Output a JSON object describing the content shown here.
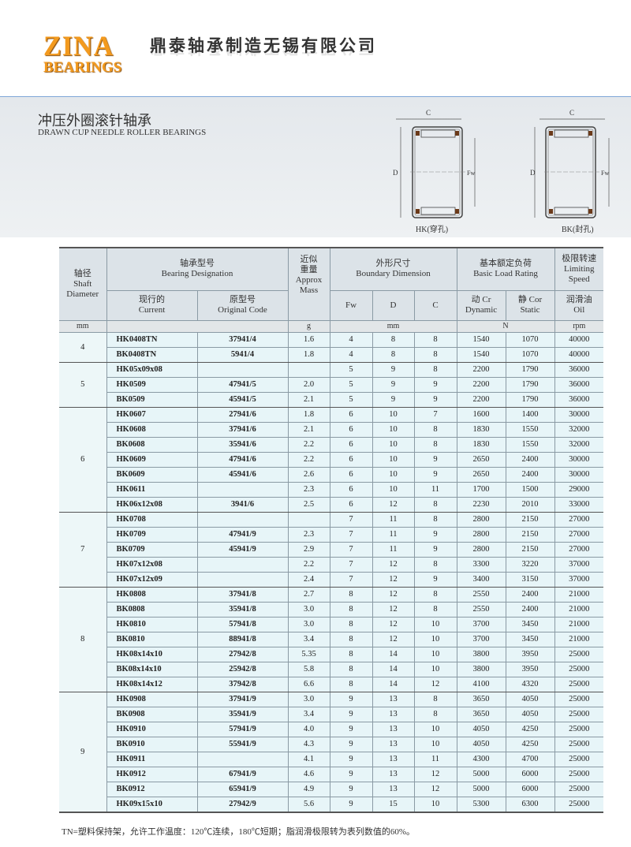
{
  "header": {
    "logo_line1": "ZINA",
    "logo_line2": "BEARINGS",
    "company": "鼎泰轴承制造无锡有限公司"
  },
  "section": {
    "title_cn": "冲压外圈滚针轴承",
    "title_en": "DRAWN CUP NEEDLE ROLLER BEARINGS"
  },
  "diagrams": [
    {
      "caption": "HK(穿孔)",
      "label_c": "C",
      "tolerance": "0/-0.25",
      "label_d": "D",
      "label_fw": "Fw"
    },
    {
      "caption": "BK(封孔)",
      "label_c": "C",
      "tolerance": "0/-0.25",
      "label_d": "D",
      "label_fw": "Fw"
    }
  ],
  "table": {
    "headers": {
      "shaft": [
        "轴径",
        "Shaft",
        "Diameter"
      ],
      "designation": [
        "轴承型号",
        "Bearing Designation"
      ],
      "current": [
        "现行的",
        "Current"
      ],
      "original": [
        "原型号",
        "Original Code"
      ],
      "mass": [
        "近似",
        "重量",
        "Approx",
        "Mass"
      ],
      "boundary": [
        "外形尺寸",
        "Boundary Dimension"
      ],
      "fw": "Fw",
      "d": "D",
      "c": "C",
      "load": [
        "基本额定负荷",
        "Basic Load Rating"
      ],
      "cr": [
        "动 Cr",
        "Dynamic"
      ],
      "cor": [
        "静 Cor",
        "Static"
      ],
      "speed": [
        "极限转速",
        "Limiting",
        "Speed"
      ],
      "oil": [
        "润滑油",
        "Oil"
      ]
    },
    "units": {
      "shaft": "mm",
      "mass": "g",
      "dims": "mm",
      "load": "N",
      "speed": "rpm"
    },
    "groups": [
      {
        "shaft": "4",
        "rows": [
          [
            "HK0408TN",
            "37941/4",
            "1.6",
            "4",
            "8",
            "8",
            "1540",
            "1070",
            "40000"
          ],
          [
            "BK0408TN",
            "5941/4",
            "1.8",
            "4",
            "8",
            "8",
            "1540",
            "1070",
            "40000"
          ]
        ]
      },
      {
        "shaft": "5",
        "rows": [
          [
            "HK05x09x08",
            "",
            "",
            "5",
            "9",
            "8",
            "2200",
            "1790",
            "36000"
          ],
          [
            "HK0509",
            "47941/5",
            "2.0",
            "5",
            "9",
            "9",
            "2200",
            "1790",
            "36000"
          ],
          [
            "BK0509",
            "45941/5",
            "2.1",
            "5",
            "9",
            "9",
            "2200",
            "1790",
            "36000"
          ]
        ]
      },
      {
        "shaft": "6",
        "rows": [
          [
            "HK0607",
            "27941/6",
            "1.8",
            "6",
            "10",
            "7",
            "1600",
            "1400",
            "30000"
          ],
          [
            "HK0608",
            "37941/6",
            "2.1",
            "6",
            "10",
            "8",
            "1830",
            "1550",
            "32000"
          ],
          [
            "BK0608",
            "35941/6",
            "2.2",
            "6",
            "10",
            "8",
            "1830",
            "1550",
            "32000"
          ],
          [
            "HK0609",
            "47941/6",
            "2.2",
            "6",
            "10",
            "9",
            "2650",
            "2400",
            "30000"
          ],
          [
            "BK0609",
            "45941/6",
            "2.6",
            "6",
            "10",
            "9",
            "2650",
            "2400",
            "30000"
          ],
          [
            "HK0611",
            "",
            "2.3",
            "6",
            "10",
            "11",
            "1700",
            "1500",
            "29000"
          ],
          [
            "HK06x12x08",
            "3941/6",
            "2.5",
            "6",
            "12",
            "8",
            "2230",
            "2010",
            "33000"
          ]
        ]
      },
      {
        "shaft": "7",
        "rows": [
          [
            "HK0708",
            "",
            "",
            "7",
            "11",
            "8",
            "2800",
            "2150",
            "27000"
          ],
          [
            "HK0709",
            "47941/9",
            "2.3",
            "7",
            "11",
            "9",
            "2800",
            "2150",
            "27000"
          ],
          [
            "BK0709",
            "45941/9",
            "2.9",
            "7",
            "11",
            "9",
            "2800",
            "2150",
            "27000"
          ],
          [
            "HK07x12x08",
            "",
            "2.2",
            "7",
            "12",
            "8",
            "3300",
            "3220",
            "37000"
          ],
          [
            "HK07x12x09",
            "",
            "2.4",
            "7",
            "12",
            "9",
            "3400",
            "3150",
            "37000"
          ]
        ]
      },
      {
        "shaft": "8",
        "rows": [
          [
            "HK0808",
            "37941/8",
            "2.7",
            "8",
            "12",
            "8",
            "2550",
            "2400",
            "21000"
          ],
          [
            "BK0808",
            "35941/8",
            "3.0",
            "8",
            "12",
            "8",
            "2550",
            "2400",
            "21000"
          ],
          [
            "HK0810",
            "57941/8",
            "3.0",
            "8",
            "12",
            "10",
            "3700",
            "3450",
            "21000"
          ],
          [
            "BK0810",
            "88941/8",
            "3.4",
            "8",
            "12",
            "10",
            "3700",
            "3450",
            "21000"
          ],
          [
            "HK08x14x10",
            "27942/8",
            "5.35",
            "8",
            "14",
            "10",
            "3800",
            "3950",
            "25000"
          ],
          [
            "BK08x14x10",
            "25942/8",
            "5.8",
            "8",
            "14",
            "10",
            "3800",
            "3950",
            "25000"
          ],
          [
            "HK08x14x12",
            "37942/8",
            "6.6",
            "8",
            "14",
            "12",
            "4100",
            "4320",
            "25000"
          ]
        ]
      },
      {
        "shaft": "9",
        "rows": [
          [
            "HK0908",
            "37941/9",
            "3.0",
            "9",
            "13",
            "8",
            "3650",
            "4050",
            "25000"
          ],
          [
            "BK0908",
            "35941/9",
            "3.4",
            "9",
            "13",
            "8",
            "3650",
            "4050",
            "25000"
          ],
          [
            "HK0910",
            "57941/9",
            "4.0",
            "9",
            "13",
            "10",
            "4050",
            "4250",
            "25000"
          ],
          [
            "BK0910",
            "55941/9",
            "4.3",
            "9",
            "13",
            "10",
            "4050",
            "4250",
            "25000"
          ],
          [
            "HK0911",
            "",
            "4.1",
            "9",
            "13",
            "11",
            "4300",
            "4700",
            "25000"
          ],
          [
            "HK0912",
            "67941/9",
            "4.6",
            "9",
            "13",
            "12",
            "5000",
            "6000",
            "25000"
          ],
          [
            "BK0912",
            "65941/9",
            "4.9",
            "9",
            "13",
            "12",
            "5000",
            "6000",
            "25000"
          ],
          [
            "HK09x15x10",
            "27942/9",
            "5.6",
            "9",
            "15",
            "10",
            "5300",
            "6300",
            "25000"
          ]
        ]
      }
    ]
  },
  "footnote": "TN=塑料保持架，允许工作温度：120℃连续，180℃短期；脂润滑极限转为表列数值的60%。",
  "colors": {
    "logo": "#f39a1e",
    "row_bg": "#e7f5f8",
    "header_bg": "#dce3e8",
    "band_bg": "#e4e8ec"
  }
}
